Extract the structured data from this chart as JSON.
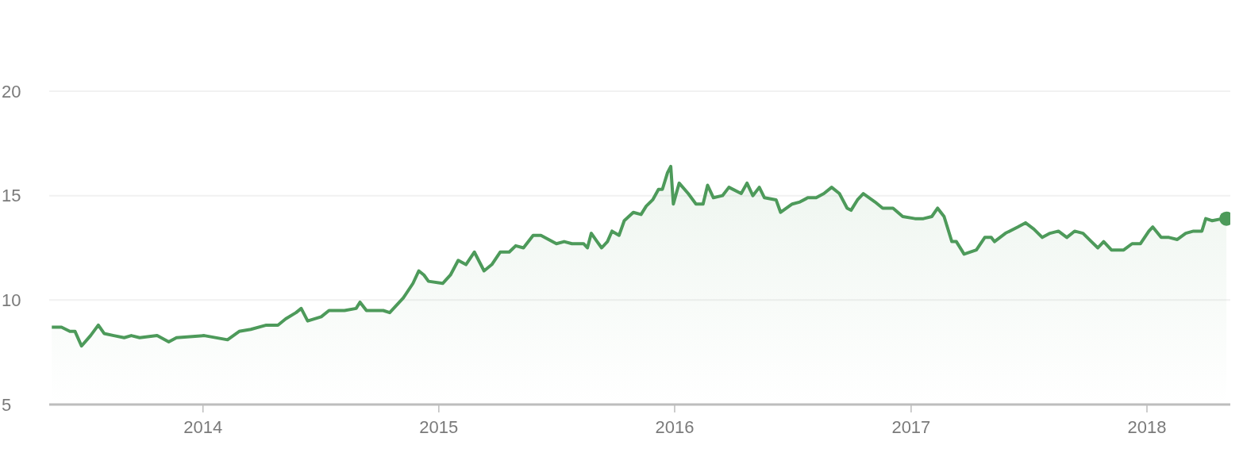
{
  "chart_data": {
    "type": "area",
    "xlim": [
      "2013-05-08",
      "2018-05-10"
    ],
    "xticks": [
      "2014",
      "2015",
      "2016",
      "2017",
      "2018"
    ],
    "ylim": [
      5,
      20
    ],
    "yticks": [
      5,
      10,
      15,
      20
    ],
    "grid": "y",
    "marker": "none",
    "series": [
      {
        "color": "#4d9a5a",
        "x": [
          "2013-05-12",
          "2013-05-27",
          "2013-06-09",
          "2013-06-17",
          "2013-06-27",
          "2013-07-11",
          "2013-07-23",
          "2013-08-01",
          "2013-08-16",
          "2013-09-01",
          "2013-09-12",
          "2013-09-25",
          "2013-10-22",
          "2013-11-09",
          "2013-11-21",
          "2014-01-03",
          "2014-02-08",
          "2014-02-26",
          "2014-03-16",
          "2014-04-09",
          "2014-04-27",
          "2014-05-09",
          "2014-05-25",
          "2014-06-02",
          "2014-06-12",
          "2014-07-03",
          "2014-07-15",
          "2014-08-08",
          "2014-08-26",
          "2014-09-01",
          "2014-09-11",
          "2014-10-07",
          "2014-10-17",
          "2014-11-07",
          "2014-11-22",
          "2014-12-01",
          "2014-12-09",
          "2014-12-16",
          "2015-01-07",
          "2015-01-19",
          "2015-01-31",
          "2015-02-12",
          "2015-02-25",
          "2015-03-12",
          "2015-03-24",
          "2015-04-06",
          "2015-04-20",
          "2015-04-30",
          "2015-05-12",
          "2015-05-27",
          "2015-06-08",
          "2015-06-20",
          "2015-07-02",
          "2015-07-14",
          "2015-07-26",
          "2015-08-13",
          "2015-08-19",
          "2015-08-25",
          "2015-09-03",
          "2015-09-10",
          "2015-09-19",
          "2015-09-26",
          "2015-10-07",
          "2015-10-15",
          "2015-10-29",
          "2015-11-10",
          "2015-11-18",
          "2015-11-28",
          "2015-12-07",
          "2015-12-13",
          "2015-12-21",
          "2015-12-26",
          "2015-12-30",
          "2016-01-08",
          "2016-01-22",
          "2016-02-03",
          "2016-02-14",
          "2016-02-21",
          "2016-03-01",
          "2016-03-15",
          "2016-03-25",
          "2016-04-13",
          "2016-04-22",
          "2016-05-01",
          "2016-05-11",
          "2016-05-19",
          "2016-06-06",
          "2016-06-13",
          "2016-07-01",
          "2016-07-13",
          "2016-07-25",
          "2016-08-07",
          "2016-08-19",
          "2016-08-31",
          "2016-09-12",
          "2016-09-24",
          "2016-09-30",
          "2016-10-10",
          "2016-10-19",
          "2016-11-06",
          "2016-11-18",
          "2016-12-04",
          "2016-12-19",
          "2017-01-07",
          "2017-01-14",
          "2017-01-20",
          "2017-02-02",
          "2017-02-11",
          "2017-02-21",
          "2017-03-05",
          "2017-03-12",
          "2017-03-24",
          "2017-04-12",
          "2017-04-25",
          "2017-05-05",
          "2017-05-10",
          "2017-05-27",
          "2017-06-15",
          "2017-06-27",
          "2017-07-10",
          "2017-07-23",
          "2017-08-04",
          "2017-08-17",
          "2017-08-30",
          "2017-09-11",
          "2017-09-24",
          "2017-10-07",
          "2017-10-17",
          "2017-10-26",
          "2017-11-07",
          "2017-11-26",
          "2017-12-09",
          "2017-12-22",
          "2018-01-04",
          "2018-01-10",
          "2018-01-23",
          "2018-02-04",
          "2018-02-17",
          "2018-03-02",
          "2018-03-14",
          "2018-03-27",
          "2018-04-02",
          "2018-04-12",
          "2018-04-28",
          "2018-05-04"
        ],
        "values": [
          8.7,
          8.7,
          8.5,
          8.5,
          7.8,
          8.3,
          8.8,
          8.4,
          8.3,
          8.2,
          8.3,
          8.2,
          8.3,
          8.0,
          8.2,
          8.3,
          8.1,
          8.5,
          8.6,
          8.8,
          8.8,
          9.1,
          9.4,
          9.6,
          9.0,
          9.2,
          9.5,
          9.5,
          9.6,
          9.9,
          9.5,
          9.5,
          9.4,
          10.1,
          10.8,
          11.4,
          11.2,
          10.9,
          10.8,
          11.2,
          11.9,
          11.7,
          12.3,
          11.4,
          11.7,
          12.3,
          12.3,
          12.6,
          12.5,
          13.1,
          13.1,
          12.9,
          12.7,
          12.8,
          12.7,
          12.7,
          12.5,
          13.2,
          12.8,
          12.5,
          12.8,
          13.3,
          13.1,
          13.8,
          14.2,
          14.1,
          14.5,
          14.8,
          15.3,
          15.3,
          16.1,
          16.4,
          14.6,
          15.6,
          15.1,
          14.6,
          14.6,
          15.5,
          14.9,
          15.0,
          15.4,
          15.1,
          15.6,
          15.0,
          15.4,
          14.9,
          14.8,
          14.2,
          14.6,
          14.7,
          14.9,
          14.9,
          15.1,
          15.4,
          15.1,
          14.4,
          14.3,
          14.8,
          15.1,
          14.7,
          14.4,
          14.4,
          14.0,
          13.9,
          13.9,
          13.9,
          14.0,
          14.4,
          14.0,
          12.8,
          12.8,
          12.2,
          12.4,
          13.0,
          13.0,
          12.8,
          13.2,
          13.5,
          13.7,
          13.4,
          13.0,
          13.2,
          13.3,
          13.0,
          13.3,
          13.2,
          12.8,
          12.5,
          12.8,
          12.4,
          12.4,
          12.7,
          12.7,
          13.3,
          13.5,
          13.0,
          13.0,
          12.9,
          13.2,
          13.3,
          13.3,
          13.9,
          13.8,
          13.9,
          13.9
        ]
      }
    ]
  }
}
